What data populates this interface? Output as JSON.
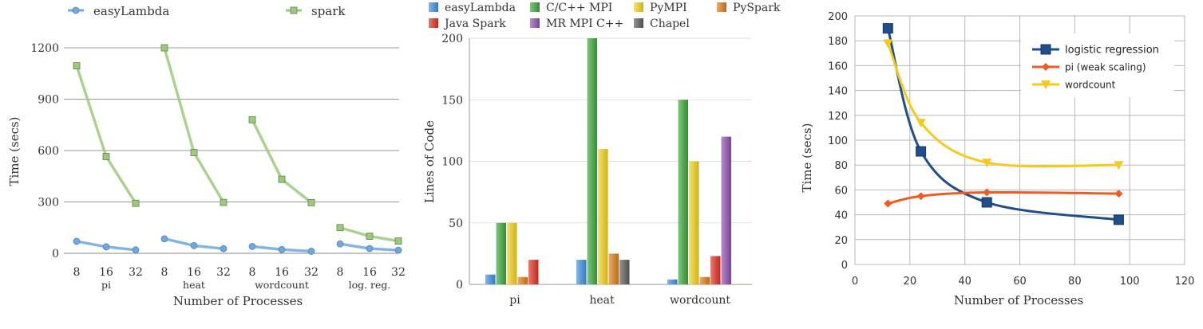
{
  "chart_data": [
    {
      "type": "line",
      "xlabel": "Number of Processes",
      "ylabel": "Time (secs)",
      "ylim": [
        0,
        1200
      ],
      "yticks": [
        "0",
        "300",
        "600",
        "900",
        "1200"
      ],
      "grid": true,
      "legend_position": "top",
      "groups": [
        {
          "label": "pi",
          "x": [
            "8",
            "16",
            "32"
          ]
        },
        {
          "label": "heat",
          "x": [
            "8",
            "16",
            "32"
          ]
        },
        {
          "label": "wordcount",
          "x": [
            "8",
            "16",
            "32"
          ]
        },
        {
          "label": "log. reg.",
          "x": [
            "8",
            "16",
            "32"
          ]
        }
      ],
      "series": [
        {
          "name": "easyLambda",
          "color": "#6fa8dc",
          "marker": "circle",
          "values": [
            [
              70,
              38,
              20
            ],
            [
              85,
              45,
              27
            ],
            [
              40,
              22,
              12
            ],
            [
              55,
              28,
              18
            ]
          ]
        },
        {
          "name": "spark",
          "color": "#9dc97d",
          "marker": "square",
          "values": [
            [
              1095,
              565,
              292
            ],
            [
              1200,
              588,
              297
            ],
            [
              780,
              432,
              296
            ],
            [
              150,
              100,
              72
            ]
          ]
        }
      ]
    },
    {
      "type": "bar",
      "ylabel": "Lines of Code",
      "ylim": [
        0,
        200
      ],
      "yticks": [
        "0",
        "50",
        "100",
        "150",
        "200"
      ],
      "grid": true,
      "legend_position": "top",
      "categories": [
        "pi",
        "heat",
        "wordcount"
      ],
      "series": [
        {
          "name": "easyLambda",
          "color": "#3d8fe0",
          "values": [
            8,
            20,
            4
          ]
        },
        {
          "name": "Java Spark",
          "color": "#e0301e",
          "values": [
            20,
            0,
            23
          ]
        },
        {
          "name": "C/C++ MPI",
          "color": "#3aa83a",
          "values": [
            50,
            200,
            150
          ]
        },
        {
          "name": "MR MPI C++",
          "color": "#8e4fae",
          "values": [
            0,
            0,
            120
          ]
        },
        {
          "name": "PyMPI",
          "color": "#f2d21a",
          "values": [
            50,
            110,
            100
          ]
        },
        {
          "name": "Chapel",
          "color": "#5c5c5c",
          "values": [
            0,
            20,
            0
          ]
        },
        {
          "name": "PySpark",
          "color": "#e07a1a",
          "values": [
            6,
            25,
            6
          ]
        }
      ]
    },
    {
      "type": "line",
      "xlabel": "Number of Processes",
      "ylabel": "Time (secs)",
      "xlim": [
        0,
        120
      ],
      "ylim": [
        0,
        200
      ],
      "xticks": [
        "0",
        "20",
        "40",
        "60",
        "80",
        "100",
        "120"
      ],
      "yticks": [
        "0",
        "20",
        "40",
        "60",
        "80",
        "100",
        "120",
        "140",
        "160",
        "180",
        "200"
      ],
      "grid": true,
      "legend_position": "top-right",
      "series": [
        {
          "name": "logistic regression",
          "color": "#1f4e8c",
          "marker": "square",
          "x": [
            12,
            24,
            48,
            96
          ],
          "y": [
            190,
            91,
            50,
            36
          ]
        },
        {
          "name": "pi (weak scaling)",
          "color": "#f05a23",
          "marker": "diamond",
          "x": [
            12,
            24,
            48,
            96
          ],
          "y": [
            49,
            55,
            58,
            57
          ]
        },
        {
          "name": "wordcount",
          "color": "#f7c81e",
          "marker": "triangle-down",
          "x": [
            12,
            24,
            48,
            96
          ],
          "y": [
            178,
            114,
            82,
            80
          ]
        }
      ]
    }
  ]
}
